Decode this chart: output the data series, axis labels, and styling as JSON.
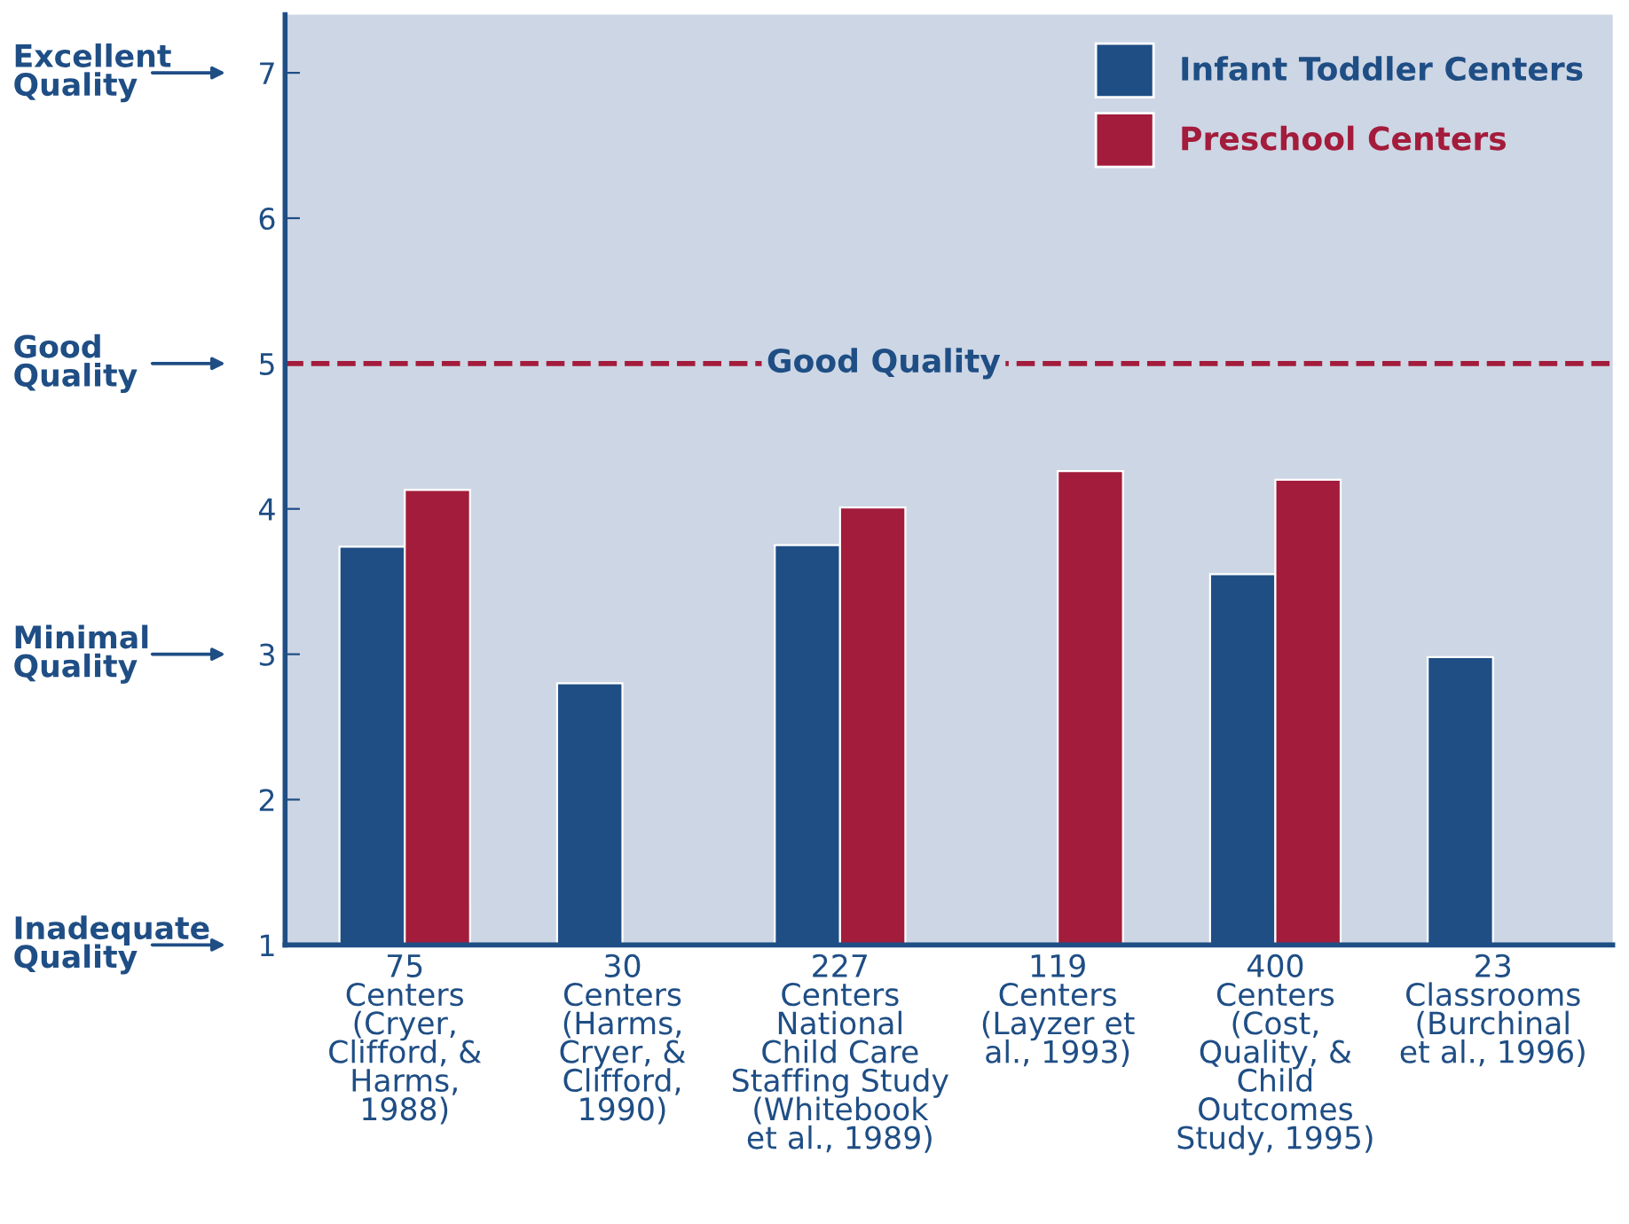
{
  "chart_data": {
    "type": "bar",
    "categories": [
      "75\nCenters\n(Cryer,\nClifford, &\nHarms,\n1988)",
      "30\nCenters\n(Harms,\nCryer, &\nClifford,\n1990)",
      "227\nCenters\nNational\nChild Care\nStaffing Study\n(Whitebook\net al., 1989)",
      "119\nCenters\n(Layzer et\nal., 1993)",
      "400\nCenters\n(Cost,\nQuality, &\nChild\nOutcomes\nStudy, 1995)",
      "23\nClassrooms\n(Burchinal\net al., 1996)"
    ],
    "series": [
      {
        "name": "Infant Toddler Centers",
        "color": "#1f4e85",
        "values": [
          3.74,
          2.8,
          3.75,
          null,
          3.55,
          2.98
        ]
      },
      {
        "name": "Preschool Centers",
        "color": "#a31c3c",
        "values": [
          4.13,
          null,
          4.01,
          4.26,
          4.2,
          null
        ]
      }
    ],
    "ylim": [
      1,
      7.4
    ],
    "yticks": [
      1,
      2,
      3,
      4,
      5,
      6,
      7
    ],
    "ref_lines": [
      {
        "axis": "y",
        "value": 5,
        "label": "Good Quality",
        "color": "#a31c3c",
        "line_style": "dashed"
      }
    ],
    "annotations": [
      "Excellent\nQuality",
      "Good\nQuality",
      "Minimal\nQuality",
      "Inadequate\nQuality"
    ],
    "legend": "top right",
    "grid": false
  }
}
